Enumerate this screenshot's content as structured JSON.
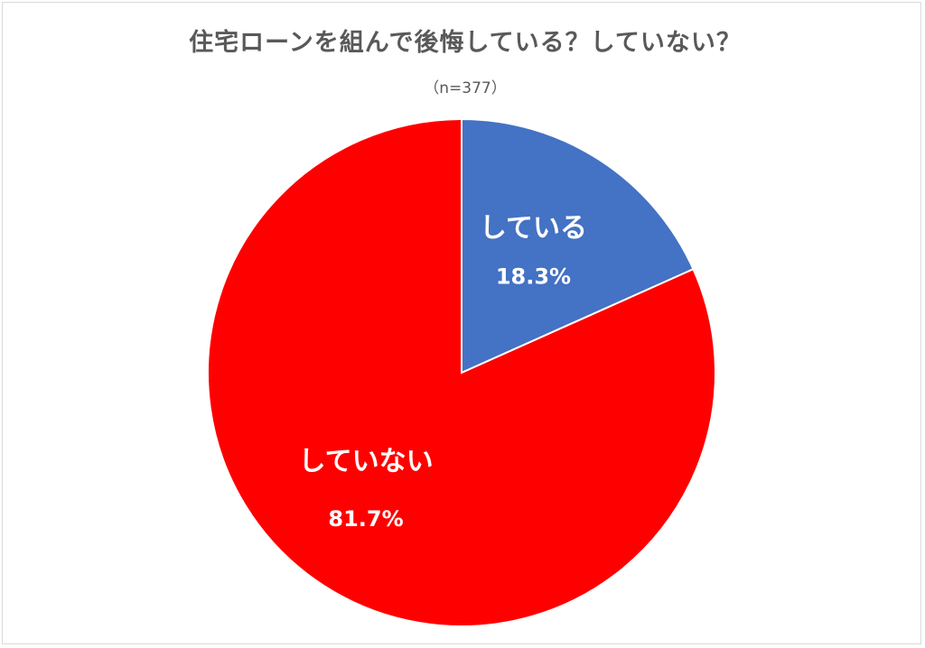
{
  "chart_data": {
    "type": "pie",
    "title": "住宅ローンを組んで後悔している？していない？",
    "subtitle": "（n=377）",
    "slices": [
      {
        "label": "している",
        "value": 18.3,
        "value_label": "18.3%",
        "color": "#4472c4"
      },
      {
        "label": "していない",
        "value": 81.7,
        "value_label": "81.7%",
        "color": "#ff0000"
      }
    ],
    "start_angle_deg": 0,
    "direction": "clockwise",
    "legend": "none"
  }
}
